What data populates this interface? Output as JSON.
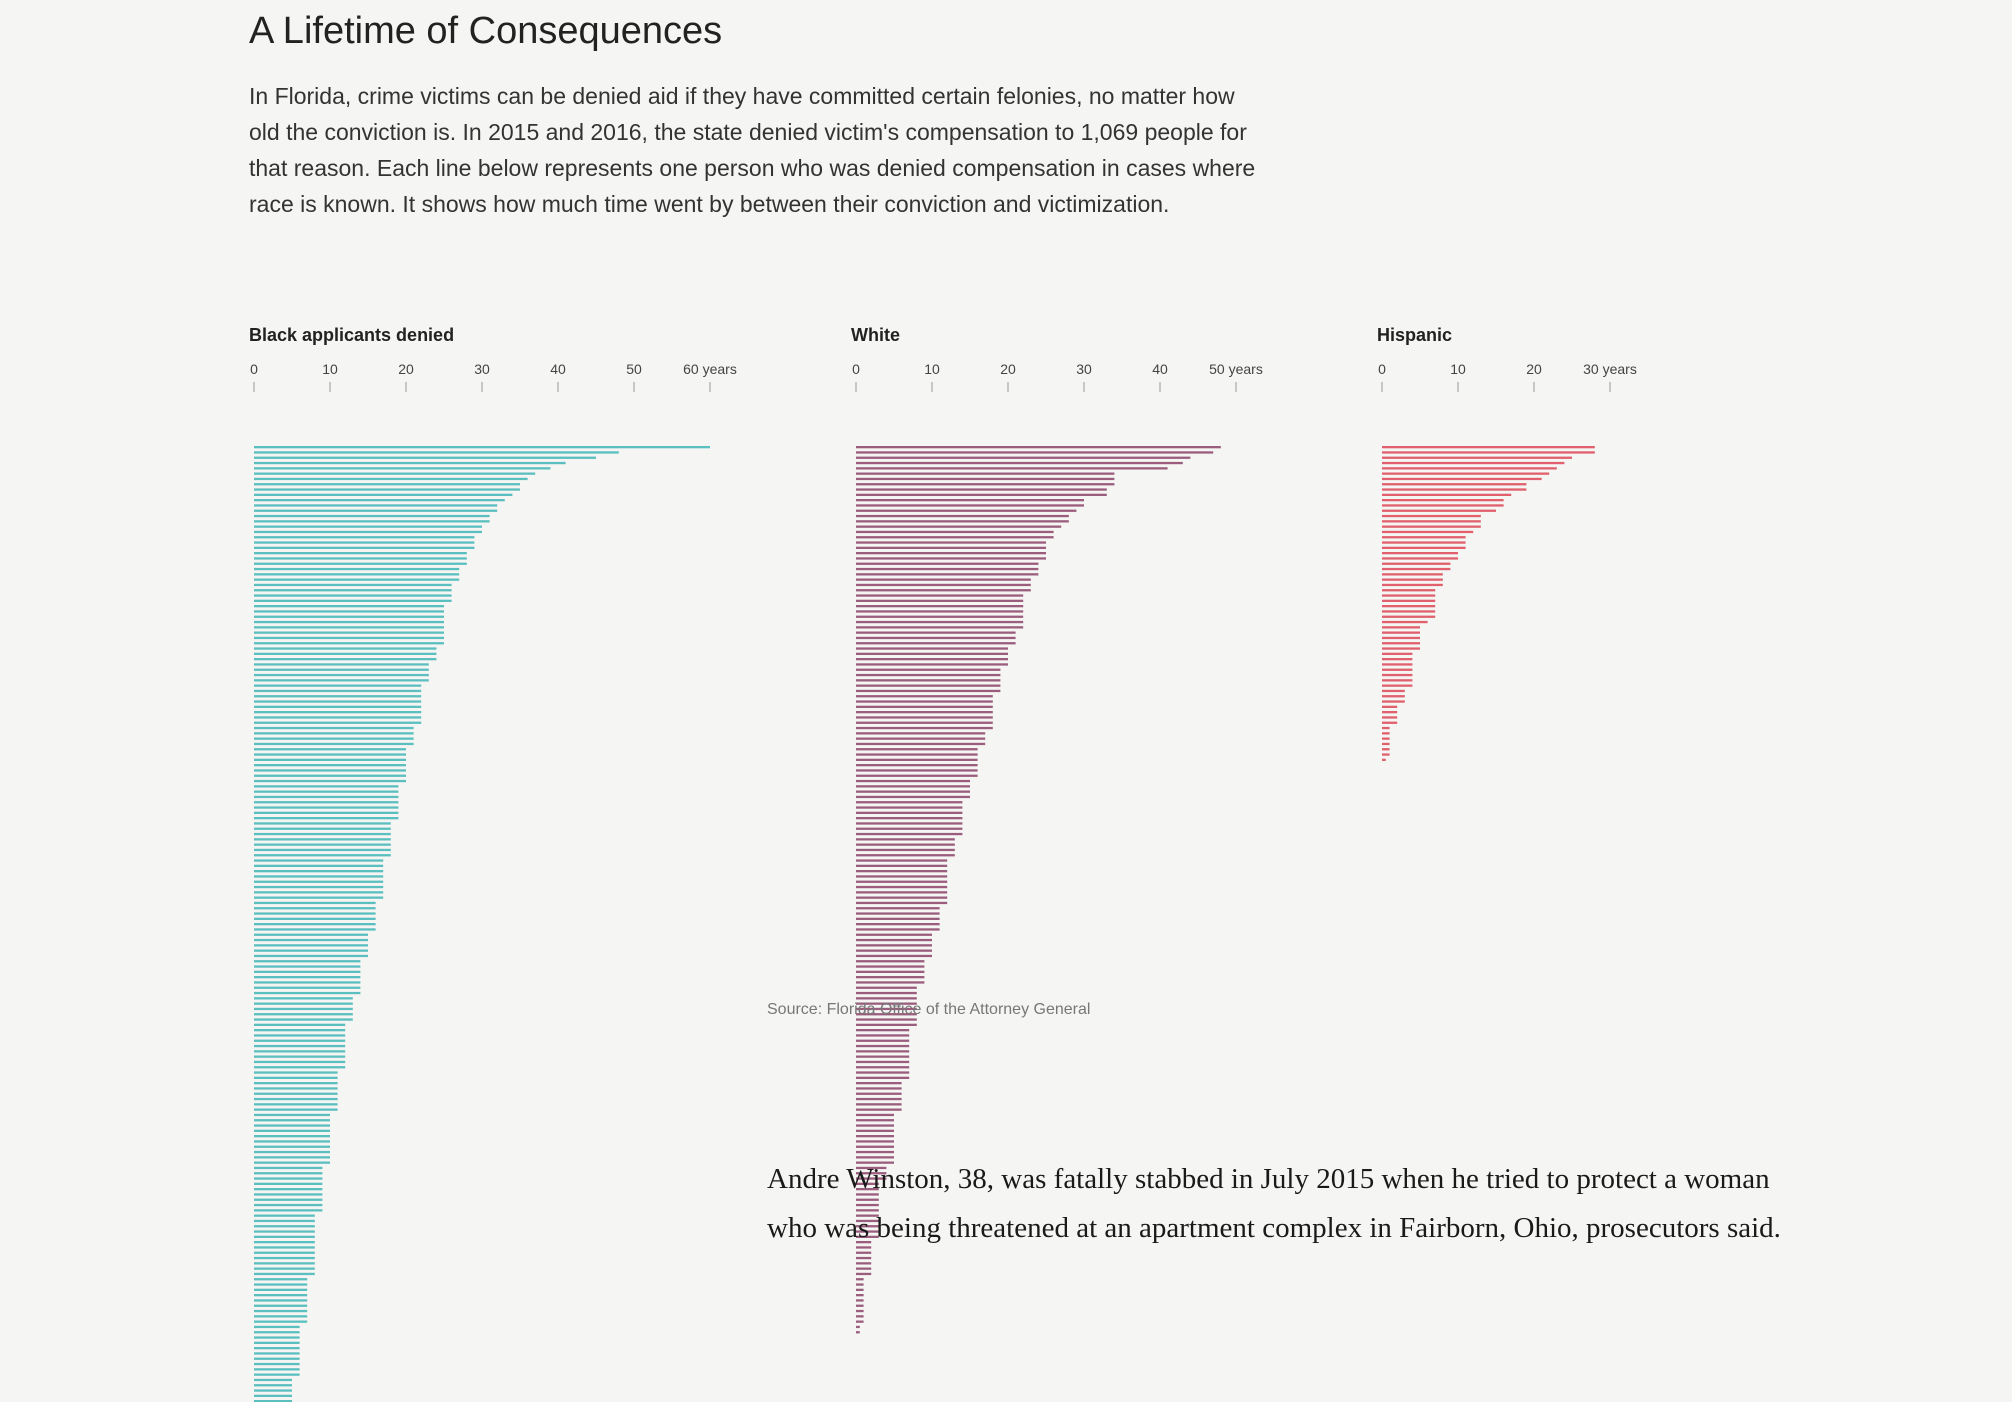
{
  "headline": "A Lifetime of Consequences",
  "intro": "In Florida, crime victims can be denied aid if they have committed certain felonies, no matter how old the conviction is. In 2015 and 2016, the state denied victim's compensation to 1,069 people for that reason. Each line below represents one person who was denied compensation in cases where race is known. It shows how much time went by between their conviction and victimization.",
  "source": "Source: Florida Office of the Attorney General",
  "story": "Andre Winston, 38, was fatally stabbed in July 2015 when he tried to protect a woman who was being threatened at an apartment complex in Fairborn, Ohio, prosecutors said.",
  "chart_data": [
    {
      "type": "bar",
      "title": "Black applicants denied",
      "color": "#5bbfbf",
      "unit": "years",
      "xlim": [
        0,
        60
      ],
      "ticks": [
        "0",
        "10",
        "20",
        "30",
        "40",
        "50",
        "60 years"
      ],
      "values": [
        60,
        48,
        45,
        41,
        39,
        37,
        36,
        35,
        35,
        34,
        33,
        32,
        32,
        31,
        31,
        30,
        30,
        29,
        29,
        29,
        28,
        28,
        28,
        27,
        27,
        27,
        26,
        26,
        26,
        26,
        25,
        25,
        25,
        25,
        25,
        25,
        25,
        25,
        24,
        24,
        24,
        23,
        23,
        23,
        23,
        22,
        22,
        22,
        22,
        22,
        22,
        22,
        22,
        21,
        21,
        21,
        21,
        20,
        20,
        20,
        20,
        20,
        20,
        20,
        19,
        19,
        19,
        19,
        19,
        19,
        19,
        18,
        18,
        18,
        18,
        18,
        18,
        18,
        17,
        17,
        17,
        17,
        17,
        17,
        17,
        17,
        16,
        16,
        16,
        16,
        16,
        16,
        15,
        15,
        15,
        15,
        15,
        14,
        14,
        14,
        14,
        14,
        14,
        14,
        13,
        13,
        13,
        13,
        13,
        12,
        12,
        12,
        12,
        12,
        12,
        12,
        12,
        12,
        11,
        11,
        11,
        11,
        11,
        11,
        11,
        11,
        10,
        10,
        10,
        10,
        10,
        10,
        10,
        10,
        10,
        10,
        9,
        9,
        9,
        9,
        9,
        9,
        9,
        9,
        9,
        8,
        8,
        8,
        8,
        8,
        8,
        8,
        8,
        8,
        8,
        8,
        8,
        7,
        7,
        7,
        7,
        7,
        7,
        7,
        7,
        7,
        6,
        6,
        6,
        6,
        6,
        6,
        6,
        6,
        6,
        6,
        5,
        5,
        5,
        5,
        5,
        5,
        5
      ]
    },
    {
      "type": "bar",
      "title": "White",
      "color": "#9b5d7d",
      "unit": "years",
      "xlim": [
        0,
        50
      ],
      "ticks": [
        "0",
        "10",
        "20",
        "30",
        "40",
        "50 years"
      ],
      "values": [
        48,
        47,
        44,
        43,
        41,
        34,
        34,
        34,
        33,
        33,
        30,
        30,
        29,
        28,
        28,
        27,
        26,
        26,
        25,
        25,
        25,
        25,
        24,
        24,
        24,
        23,
        23,
        23,
        22,
        22,
        22,
        22,
        22,
        22,
        22,
        21,
        21,
        21,
        20,
        20,
        20,
        20,
        19,
        19,
        19,
        19,
        19,
        18,
        18,
        18,
        18,
        18,
        18,
        18,
        17,
        17,
        17,
        16,
        16,
        16,
        16,
        16,
        16,
        15,
        15,
        15,
        15,
        14,
        14,
        14,
        14,
        14,
        14,
        14,
        13,
        13,
        13,
        13,
        12,
        12,
        12,
        12,
        12,
        12,
        12,
        12,
        12,
        11,
        11,
        11,
        11,
        11,
        10,
        10,
        10,
        10,
        10,
        9,
        9,
        9,
        9,
        9,
        8,
        8,
        8,
        8,
        8,
        8,
        8,
        8,
        7,
        7,
        7,
        7,
        7,
        7,
        7,
        7,
        7,
        7,
        6,
        6,
        6,
        6,
        6,
        6,
        5,
        5,
        5,
        5,
        5,
        5,
        5,
        5,
        5,
        5,
        4,
        4,
        4,
        3,
        3,
        3,
        3,
        3,
        3,
        3,
        3,
        3,
        3,
        3,
        2,
        2,
        2,
        2,
        2,
        2,
        2,
        1,
        1,
        1,
        1,
        1,
        1,
        1,
        1,
        1,
        0.5,
        0.5
      ]
    },
    {
      "type": "bar",
      "title": "Hispanic",
      "color": "#e0606d",
      "unit": "years",
      "xlim": [
        0,
        30
      ],
      "ticks": [
        "0",
        "10",
        "20",
        "30 years"
      ],
      "values": [
        28,
        28,
        25,
        24,
        23,
        22,
        21,
        19,
        19,
        17,
        16,
        16,
        15,
        13,
        13,
        13,
        12,
        11,
        11,
        11,
        10,
        10,
        9,
        9,
        8,
        8,
        8,
        7,
        7,
        7,
        7,
        7,
        7,
        6,
        5,
        5,
        5,
        5,
        5,
        4,
        4,
        4,
        4,
        4,
        4,
        4,
        3,
        3,
        3,
        2,
        2,
        2,
        2,
        1,
        1,
        1,
        1,
        1,
        1,
        0.5
      ]
    }
  ]
}
